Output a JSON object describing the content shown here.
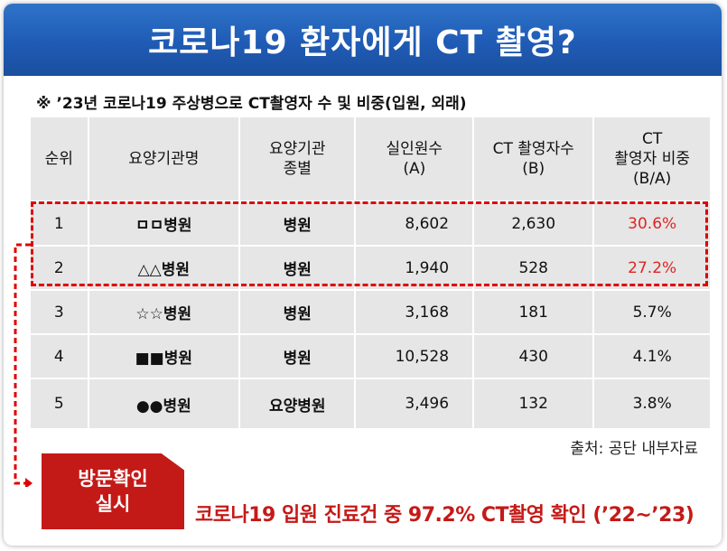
{
  "banner": {
    "title": "코로나19 환자에게 CT 촬영?"
  },
  "subtitle": "※ ’23년 코로나19 주상병으로 CT촬영자 수 및 비중(입원, 외래)",
  "table": {
    "headers": [
      [
        "순위"
      ],
      [
        "요양기관명"
      ],
      [
        "요양기관",
        "종별"
      ],
      [
        "실인원수",
        "(A)"
      ],
      [
        "CT 촬영자수",
        "(B)"
      ],
      [
        "CT",
        "촬영자 비중",
        "(B/A)"
      ]
    ],
    "rows": [
      {
        "rank": "1",
        "name": "ㅁㅁ병원",
        "type": "병원",
        "persons": "8,602",
        "ct": "2,630",
        "ratio": "30.6%"
      },
      {
        "rank": "2",
        "name": "△△병원",
        "type": "병원",
        "persons": "1,940",
        "ct": "528",
        "ratio": "27.2%"
      },
      {
        "rank": "3",
        "name": "☆☆병원",
        "type": "병원",
        "persons": "3,168",
        "ct": "181",
        "ratio": "5.7%"
      },
      {
        "rank": "4",
        "name": "■■병원",
        "type": "병원",
        "persons": "10,528",
        "ct": "430",
        "ratio": "4.1%"
      },
      {
        "rank": "5",
        "name": "●●병원",
        "type": "요양병원",
        "persons": "3,496",
        "ct": "132",
        "ratio": "3.8%"
      }
    ]
  },
  "source": "출처: 공단 내부자료",
  "badge": {
    "line1": "방문확인",
    "line2": "실시"
  },
  "footer_note": "코로나19 입원 진료건 중 97.2% CT촬영 확인 (’22~’23)",
  "colors": {
    "banner": "#1f5bb5",
    "accent_red": "#c41a17",
    "highlight_red": "#e02424",
    "cell_bg": "#e6e6e6"
  }
}
